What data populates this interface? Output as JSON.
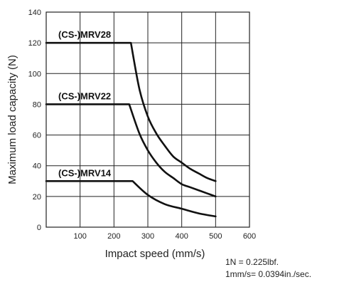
{
  "chart_data": {
    "type": "line",
    "title": "",
    "xlabel": "Impact speed (mm/s)",
    "ylabel": "Maximum load capacity (N)",
    "xlim": [
      0,
      600
    ],
    "ylim": [
      0,
      140
    ],
    "xticks": [
      100,
      200,
      300,
      400,
      500,
      600
    ],
    "yticks": [
      0,
      20,
      40,
      60,
      80,
      100,
      120,
      140
    ],
    "grid": true,
    "series": [
      {
        "name": "(CS-)MRV28",
        "x": [
          0,
          250,
          275,
          300,
          325,
          350,
          375,
          400,
          425,
          450,
          475,
          500
        ],
        "y": [
          120,
          120,
          90,
          72,
          61,
          53,
          46,
          42,
          38,
          35,
          32,
          30
        ]
      },
      {
        "name": "(CS-)MRV22",
        "x": [
          0,
          245,
          275,
          300,
          325,
          350,
          375,
          400,
          425,
          450,
          475,
          500
        ],
        "y": [
          80,
          80,
          61,
          50,
          42,
          36,
          32,
          28,
          26,
          24,
          22,
          20
        ]
      },
      {
        "name": "(CS-)MRV14",
        "x": [
          0,
          255,
          300,
          350,
          400,
          450,
          500
        ],
        "y": [
          30,
          30,
          21,
          15,
          12,
          9,
          7
        ]
      }
    ]
  },
  "notes": [
    "1N = 0.225lbf.",
    "1mm/s= 0.0394in./sec."
  ]
}
